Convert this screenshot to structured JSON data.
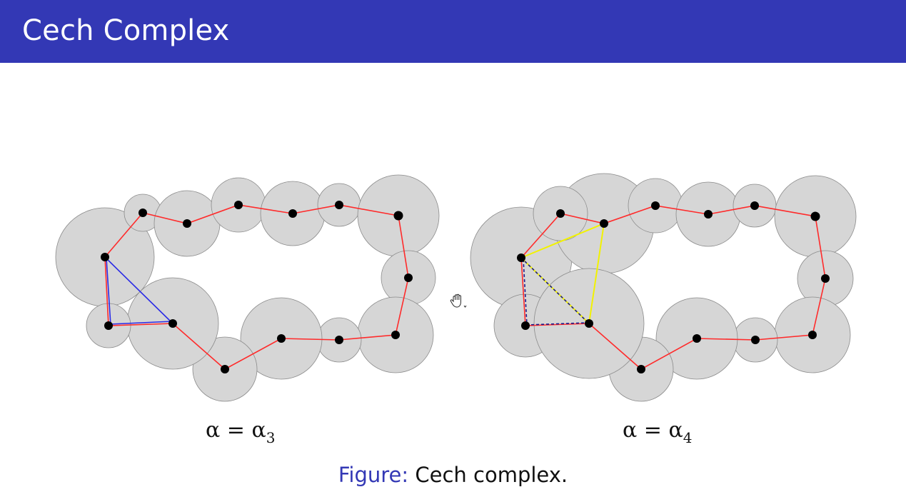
{
  "slide": {
    "title": "Cech Complex"
  },
  "panels": [
    {
      "label": {
        "symbol": "α = α",
        "subscript": "3"
      },
      "highlight": {
        "type": "edge-triangle",
        "color": "#2a2ae6"
      }
    },
    {
      "label": {
        "symbol": "α = α",
        "subscript": "4"
      },
      "highlight": {
        "type": "filled-triangle",
        "color": "#f2f200",
        "dashed_edge_color": "#1a1a8c"
      }
    }
  ],
  "colors": {
    "header": "#3338b5",
    "ball_fill": "#d6d6d6",
    "ball_stroke": "#8a8a8a",
    "edge": "#ff2a2a",
    "vertex": "#000000"
  },
  "caption": {
    "prefix": "Figure:",
    "text": "Cech complex."
  },
  "cursor": {
    "icon": "hand-grab-icon"
  }
}
